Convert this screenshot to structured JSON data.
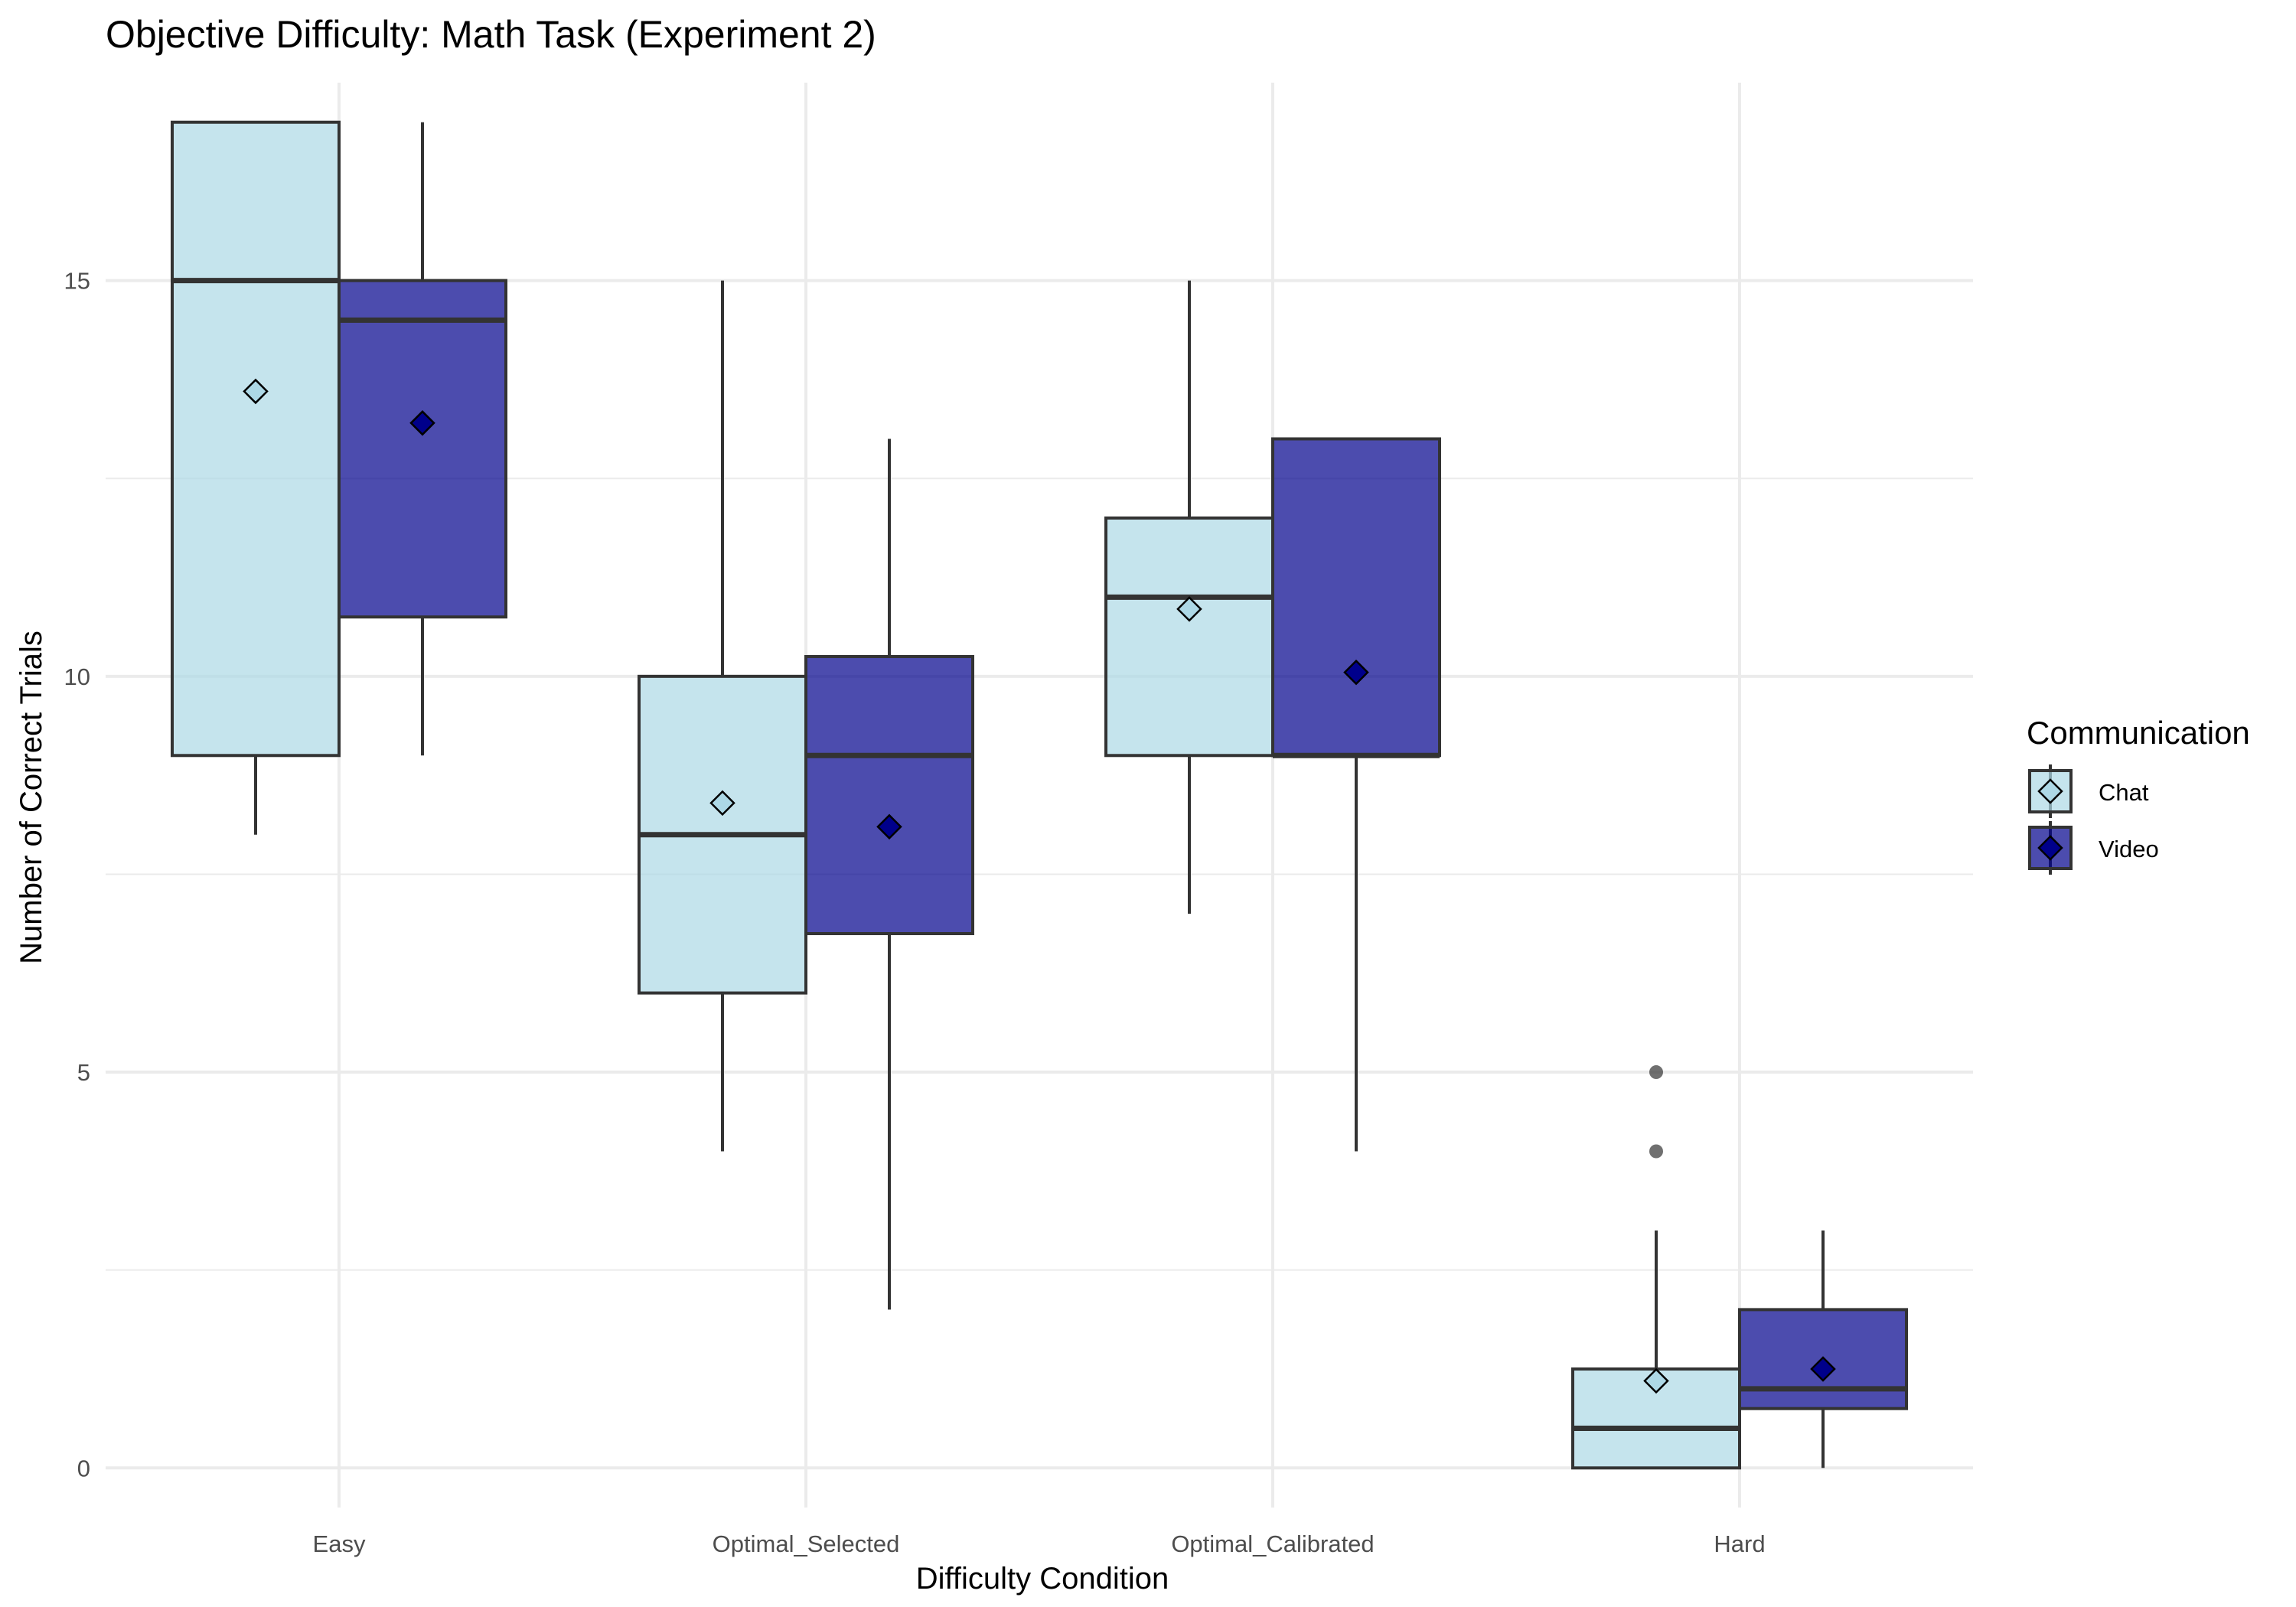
{
  "chart_data": {
    "type": "boxplot",
    "title": "Objective Difficulty: Math Task (Experiment 2)",
    "xlabel": "Difficulty Condition",
    "ylabel": "Number of Correct Trials",
    "categories": [
      "Easy",
      "Optimal_Selected",
      "Optimal_Calibrated",
      "Hard"
    ],
    "y_ticks": [
      0,
      5,
      10,
      15
    ],
    "ylim": [
      -0.5,
      17.5
    ],
    "grid": true,
    "legend": {
      "title": "Communication",
      "position": "right",
      "entries": [
        "Chat",
        "Video"
      ]
    },
    "series": [
      {
        "name": "Chat",
        "fill": "#add8e6",
        "mean_fill": "#add8e6",
        "boxes": [
          {
            "category": "Easy",
            "whisker_low": 8,
            "q1": 9,
            "median": 15,
            "q3": 17,
            "whisker_high": 17,
            "mean": 13.6,
            "outliers": []
          },
          {
            "category": "Optimal_Selected",
            "whisker_low": 4,
            "q1": 6,
            "median": 8,
            "q3": 10,
            "whisker_high": 15,
            "mean": 8.4,
            "outliers": []
          },
          {
            "category": "Optimal_Calibrated",
            "whisker_low": 7,
            "q1": 9,
            "median": 11,
            "q3": 12,
            "whisker_high": 15,
            "mean": 10.85,
            "outliers": []
          },
          {
            "category": "Hard",
            "whisker_low": 0,
            "q1": 0,
            "median": 0.5,
            "q3": 1.25,
            "whisker_high": 3,
            "mean": 1.1,
            "outliers": [
              4,
              5
            ]
          }
        ]
      },
      {
        "name": "Video",
        "fill": "#00008b",
        "mean_fill": "#00008b",
        "boxes": [
          {
            "category": "Easy",
            "whisker_low": 9,
            "q1": 10.75,
            "median": 14.5,
            "q3": 15,
            "whisker_high": 17,
            "mean": 13.2,
            "outliers": []
          },
          {
            "category": "Optimal_Selected",
            "whisker_low": 2,
            "q1": 6.75,
            "median": 9,
            "q3": 10.25,
            "whisker_high": 13,
            "mean": 8.1,
            "outliers": []
          },
          {
            "category": "Optimal_Calibrated",
            "whisker_low": 4,
            "q1": 9,
            "median": 9,
            "q3": 13,
            "whisker_high": 13,
            "mean": 10.05,
            "outliers": []
          },
          {
            "category": "Hard",
            "whisker_low": 0,
            "q1": 0.75,
            "median": 1,
            "q3": 2,
            "whisker_high": 3,
            "mean": 1.25,
            "outliers": []
          }
        ]
      }
    ]
  }
}
